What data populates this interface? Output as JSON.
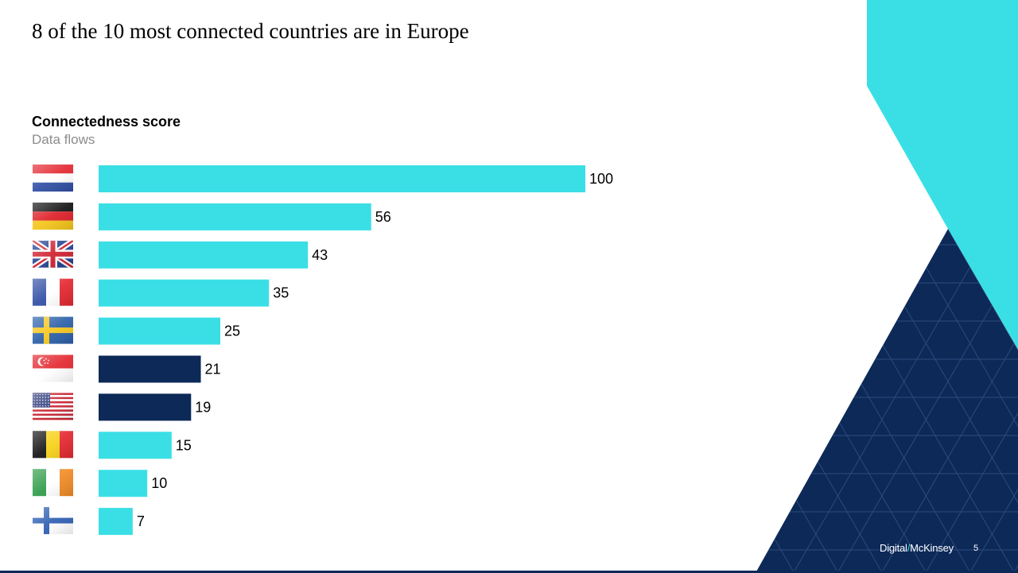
{
  "slide": {
    "title": "8 of the 10 most connected countries are in Europe"
  },
  "footer": {
    "logo_part1": "Digital",
    "logo_slash": "/",
    "logo_part2": "McKinsey",
    "page_number": "5"
  },
  "colors": {
    "europe": "#3adfe6",
    "non_europe": "#0c2958",
    "accent_cyan": "#3adfe6",
    "navy": "#0c2958"
  },
  "chart_data": {
    "type": "bar",
    "orientation": "horizontal",
    "title": "Connectedness score",
    "subtitle": "Data flows",
    "xlim": [
      0,
      100
    ],
    "grid": false,
    "categories": [
      "netherlands-flag-icon",
      "germany-flag-icon",
      "united-kingdom-flag-icon",
      "france-flag-icon",
      "sweden-flag-icon",
      "singapore-flag-icon",
      "united-states-flag-icon",
      "belgium-flag-icon",
      "ireland-flag-icon",
      "finland-flag-icon"
    ],
    "values": [
      100,
      56,
      43,
      35,
      25,
      21,
      19,
      15,
      10,
      7
    ],
    "bar_colors": [
      "#3adfe6",
      "#3adfe6",
      "#3adfe6",
      "#3adfe6",
      "#3adfe6",
      "#0c2958",
      "#0c2958",
      "#3adfe6",
      "#3adfe6",
      "#3adfe6"
    ]
  }
}
